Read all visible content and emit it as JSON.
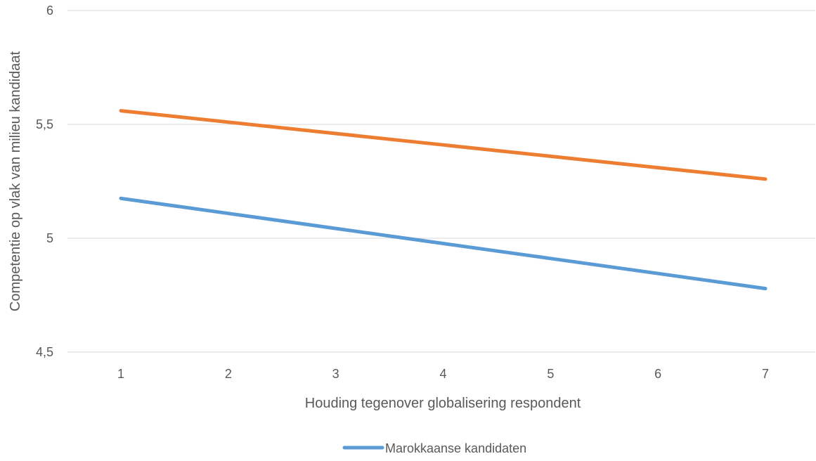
{
  "chart_data": {
    "type": "line",
    "title": "",
    "xlabel": "Houding tegenover globalisering respondent",
    "ylabel": "Competentie op vlak van milieu  kandidaat",
    "categories": [
      "1",
      "2",
      "3",
      "4",
      "5",
      "6",
      "7"
    ],
    "ylim": [
      4.5,
      6
    ],
    "yticks": [
      "4,5",
      "5",
      "5,5",
      "6"
    ],
    "ytick_values": [
      4.5,
      5,
      5.5,
      6
    ],
    "grid": true,
    "legend_position": "bottom",
    "series": [
      {
        "color": "#ED7D31",
        "values": [
          5.56,
          5.51,
          5.46,
          5.41,
          5.36,
          5.31,
          5.26
        ]
      },
      {
        "name": "Marokkaanse kandidaten",
        "color": "#5B9BD5",
        "values": [
          5.175,
          5.109,
          5.043,
          4.977,
          4.911,
          4.845,
          4.779
        ]
      }
    ],
    "legend": [
      {
        "label": "Marokkaanse kandidaten",
        "color": "#5B9BD5"
      }
    ]
  }
}
